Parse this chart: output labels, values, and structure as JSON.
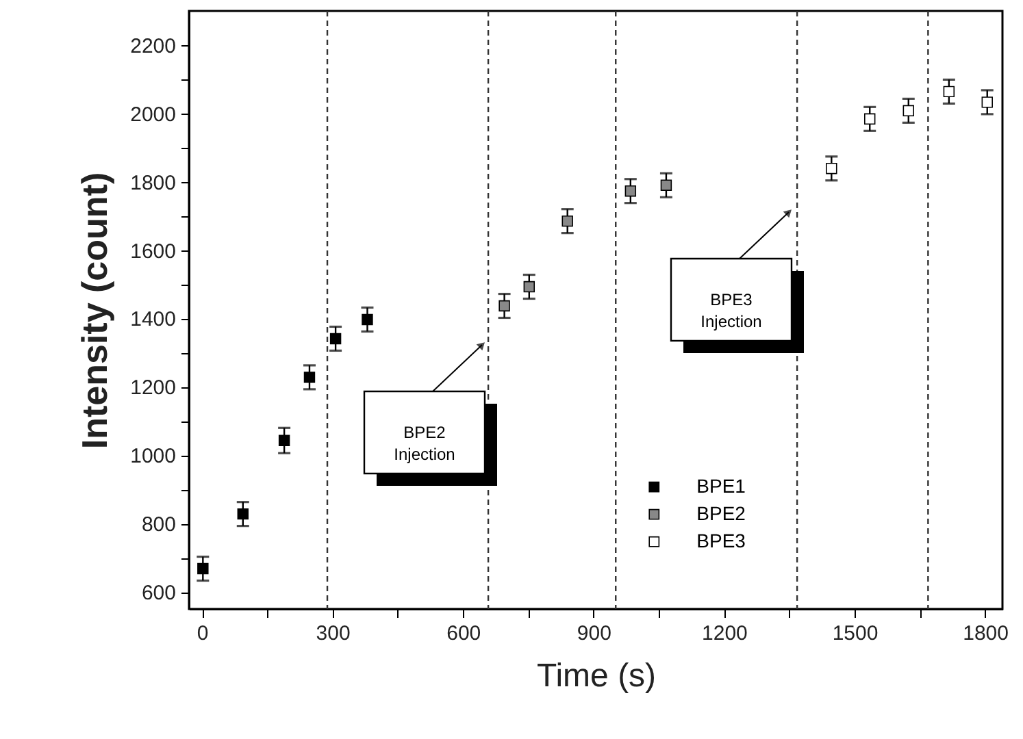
{
  "chart_data": {
    "type": "scatter",
    "xlabel": "Time (s)",
    "ylabel": "Intensity (count)",
    "xlim": [
      -30,
      1840
    ],
    "ylim": [
      550,
      2300
    ],
    "xticks": [
      0,
      {
        "value": 150,
        "label": null
      },
      300,
      {
        "value": 450,
        "label": null
      },
      600,
      {
        "value": 750,
        "label": null
      },
      900,
      {
        "value": 1050,
        "label": null
      },
      1200,
      {
        "value": 1350,
        "label": null
      },
      1500,
      {
        "value": 1650,
        "label": null
      },
      1800
    ],
    "yticks": [
      600,
      {
        "value": 700,
        "label": null
      },
      800,
      {
        "value": 900,
        "label": null
      },
      1000,
      {
        "value": 1100,
        "label": null
      },
      1200,
      {
        "value": 1300,
        "label": null
      },
      1400,
      {
        "value": 1500,
        "label": null
      },
      1600,
      {
        "value": 1700,
        "label": null
      },
      1800,
      {
        "value": 1900,
        "label": null
      },
      2000,
      {
        "value": 2100,
        "label": null
      },
      2200
    ],
    "series": [
      {
        "name": "BPE1",
        "color": "#000000",
        "x": [
          2,
          94,
          189,
          247,
          307,
          380
        ],
        "values": [
          668,
          828,
          1043,
          1228,
          1341,
          1397
        ],
        "errors": [
          35,
          35,
          37,
          35,
          35,
          35
        ]
      },
      {
        "name": "BPE2",
        "color": "#888888",
        "x": [
          695,
          752,
          840,
          985,
          1067
        ],
        "values": [
          1437,
          1493,
          1685,
          1773,
          1790
        ],
        "errors": [
          35,
          35,
          35,
          35,
          35
        ]
      },
      {
        "name": "BPE3",
        "color": "#ffffff",
        "x": [
          1447,
          1535,
          1624,
          1717,
          1805
        ],
        "values": [
          1839,
          1984,
          2008,
          2064,
          2033
        ],
        "errors": [
          35,
          35,
          35,
          35,
          35
        ]
      }
    ],
    "ref_lines": [
      {
        "axis": "x",
        "value": 288,
        "line_style": "dashed",
        "color": "#333333"
      },
      {
        "axis": "x",
        "value": 658,
        "line_style": "dashed",
        "color": "#333333"
      },
      {
        "axis": "x",
        "value": 951,
        "line_style": "dashed",
        "color": "#333333"
      },
      {
        "axis": "x",
        "value": 1368,
        "line_style": "dashed",
        "color": "#333333"
      },
      {
        "axis": "x",
        "value": 1669,
        "line_style": "dashed",
        "color": "#333333"
      }
    ],
    "annotations": [
      "BPE2 Injection",
      "BPE3 Injection"
    ],
    "marker": "square",
    "grid": false,
    "legend": "bottom"
  }
}
